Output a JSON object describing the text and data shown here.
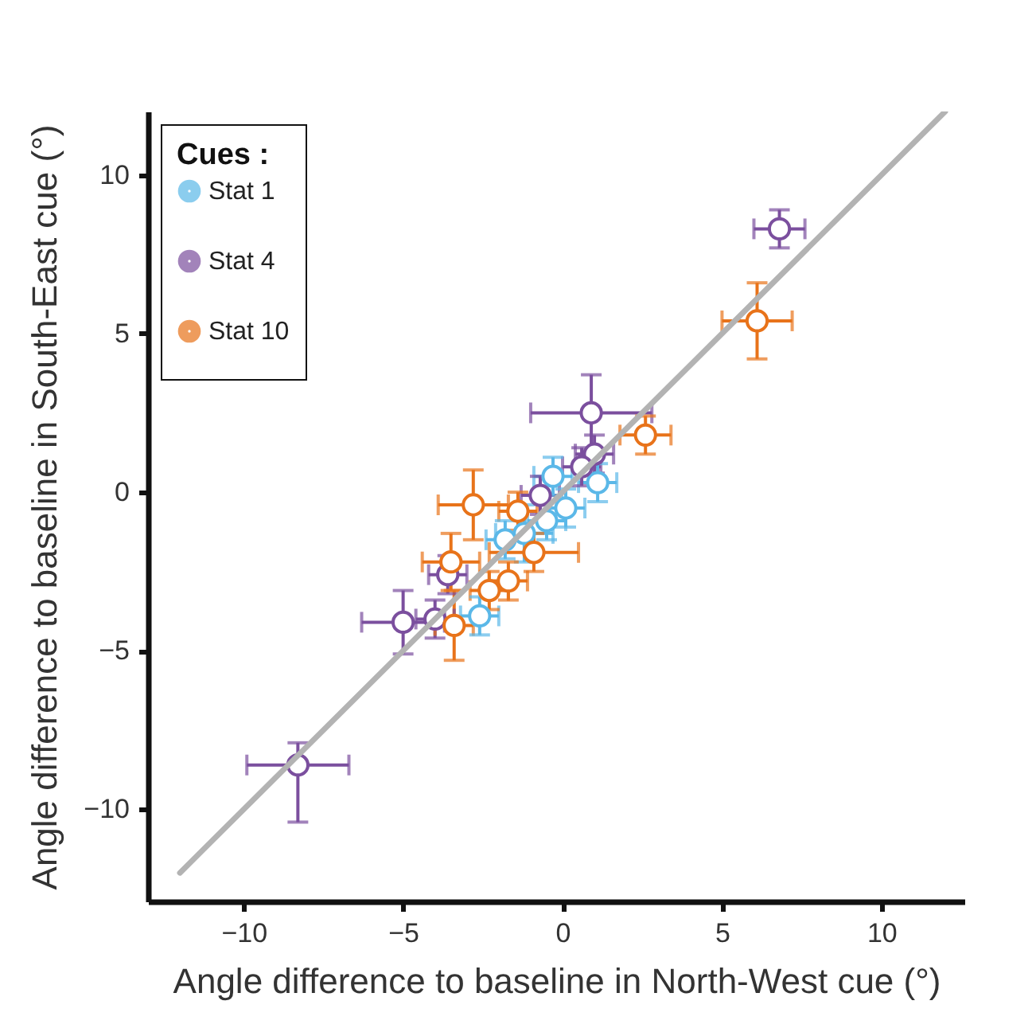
{
  "chart_data": {
    "type": "scatter",
    "xlabel": "Angle difference to baseline in North-West cue (°)",
    "ylabel": "Angle difference to baseline in South-East cue (°)",
    "legend_title": "Cues :",
    "legend": "top left",
    "grid": false,
    "marker": "circle",
    "xlim": [
      -13,
      12.6
    ],
    "ylim": [
      -12.9,
      12
    ],
    "xticks": [
      -10,
      -5,
      0,
      5,
      10
    ],
    "yticks": [
      -10,
      -5,
      0,
      5,
      10
    ],
    "series": [
      {
        "name": "Stat 1",
        "color": "#5bb8e8",
        "x": [
          -0.3,
          1.1,
          0.1,
          -0.5,
          -1.2,
          -1.8,
          -2.6
        ],
        "values": [
          0.5,
          0.3,
          -0.5,
          -0.9,
          -1.3,
          -1.5,
          -3.9
        ],
        "errors": [
          0.6,
          0.6,
          0.6,
          0.6,
          0.9,
          0.6,
          0.6
        ],
        "xerrors": [
          0.6,
          0.6,
          0.6,
          0.6,
          0.9,
          0.6,
          0.6
        ]
      },
      {
        "name": "Stat 4",
        "color": "#7b4f9e",
        "x": [
          6.8,
          0.9,
          1.0,
          0.6,
          -0.7,
          -3.6,
          -5.0,
          -4.0,
          -8.3
        ],
        "values": [
          8.3,
          2.5,
          1.2,
          0.8,
          -0.1,
          -2.6,
          -4.1,
          -4.0,
          -8.6
        ],
        "errors": [
          0.6,
          1.2,
          0.6,
          0.6,
          0.6,
          0.6,
          1.0,
          0.6,
          [
            -10.4,
            -7.9
          ]
        ],
        "xerrors": [
          0.8,
          1.9,
          0.6,
          0.6,
          0.6,
          0.6,
          1.3,
          0.6,
          1.6
        ]
      },
      {
        "name": "Stat 10",
        "color": "#e8731a",
        "x": [
          6.1,
          2.6,
          -2.8,
          -1.4,
          -0.9,
          -3.5,
          -1.7,
          -2.3,
          -3.4
        ],
        "values": [
          5.4,
          1.8,
          -0.4,
          -0.6,
          -1.9,
          -2.2,
          -2.8,
          -3.1,
          -4.2
        ],
        "errors": [
          1.2,
          0.6,
          1.1,
          0.6,
          0.6,
          0.9,
          0.6,
          0.6,
          1.1
        ],
        "xerrors": [
          1.1,
          0.8,
          1.1,
          0.6,
          1.4,
          0.9,
          0.6,
          0.6,
          0.6
        ]
      },
      {
        "type": "line",
        "color": "#b3b3b3",
        "marker": "none",
        "x": [
          -12,
          12
        ],
        "values": [
          -12,
          12
        ]
      }
    ]
  }
}
